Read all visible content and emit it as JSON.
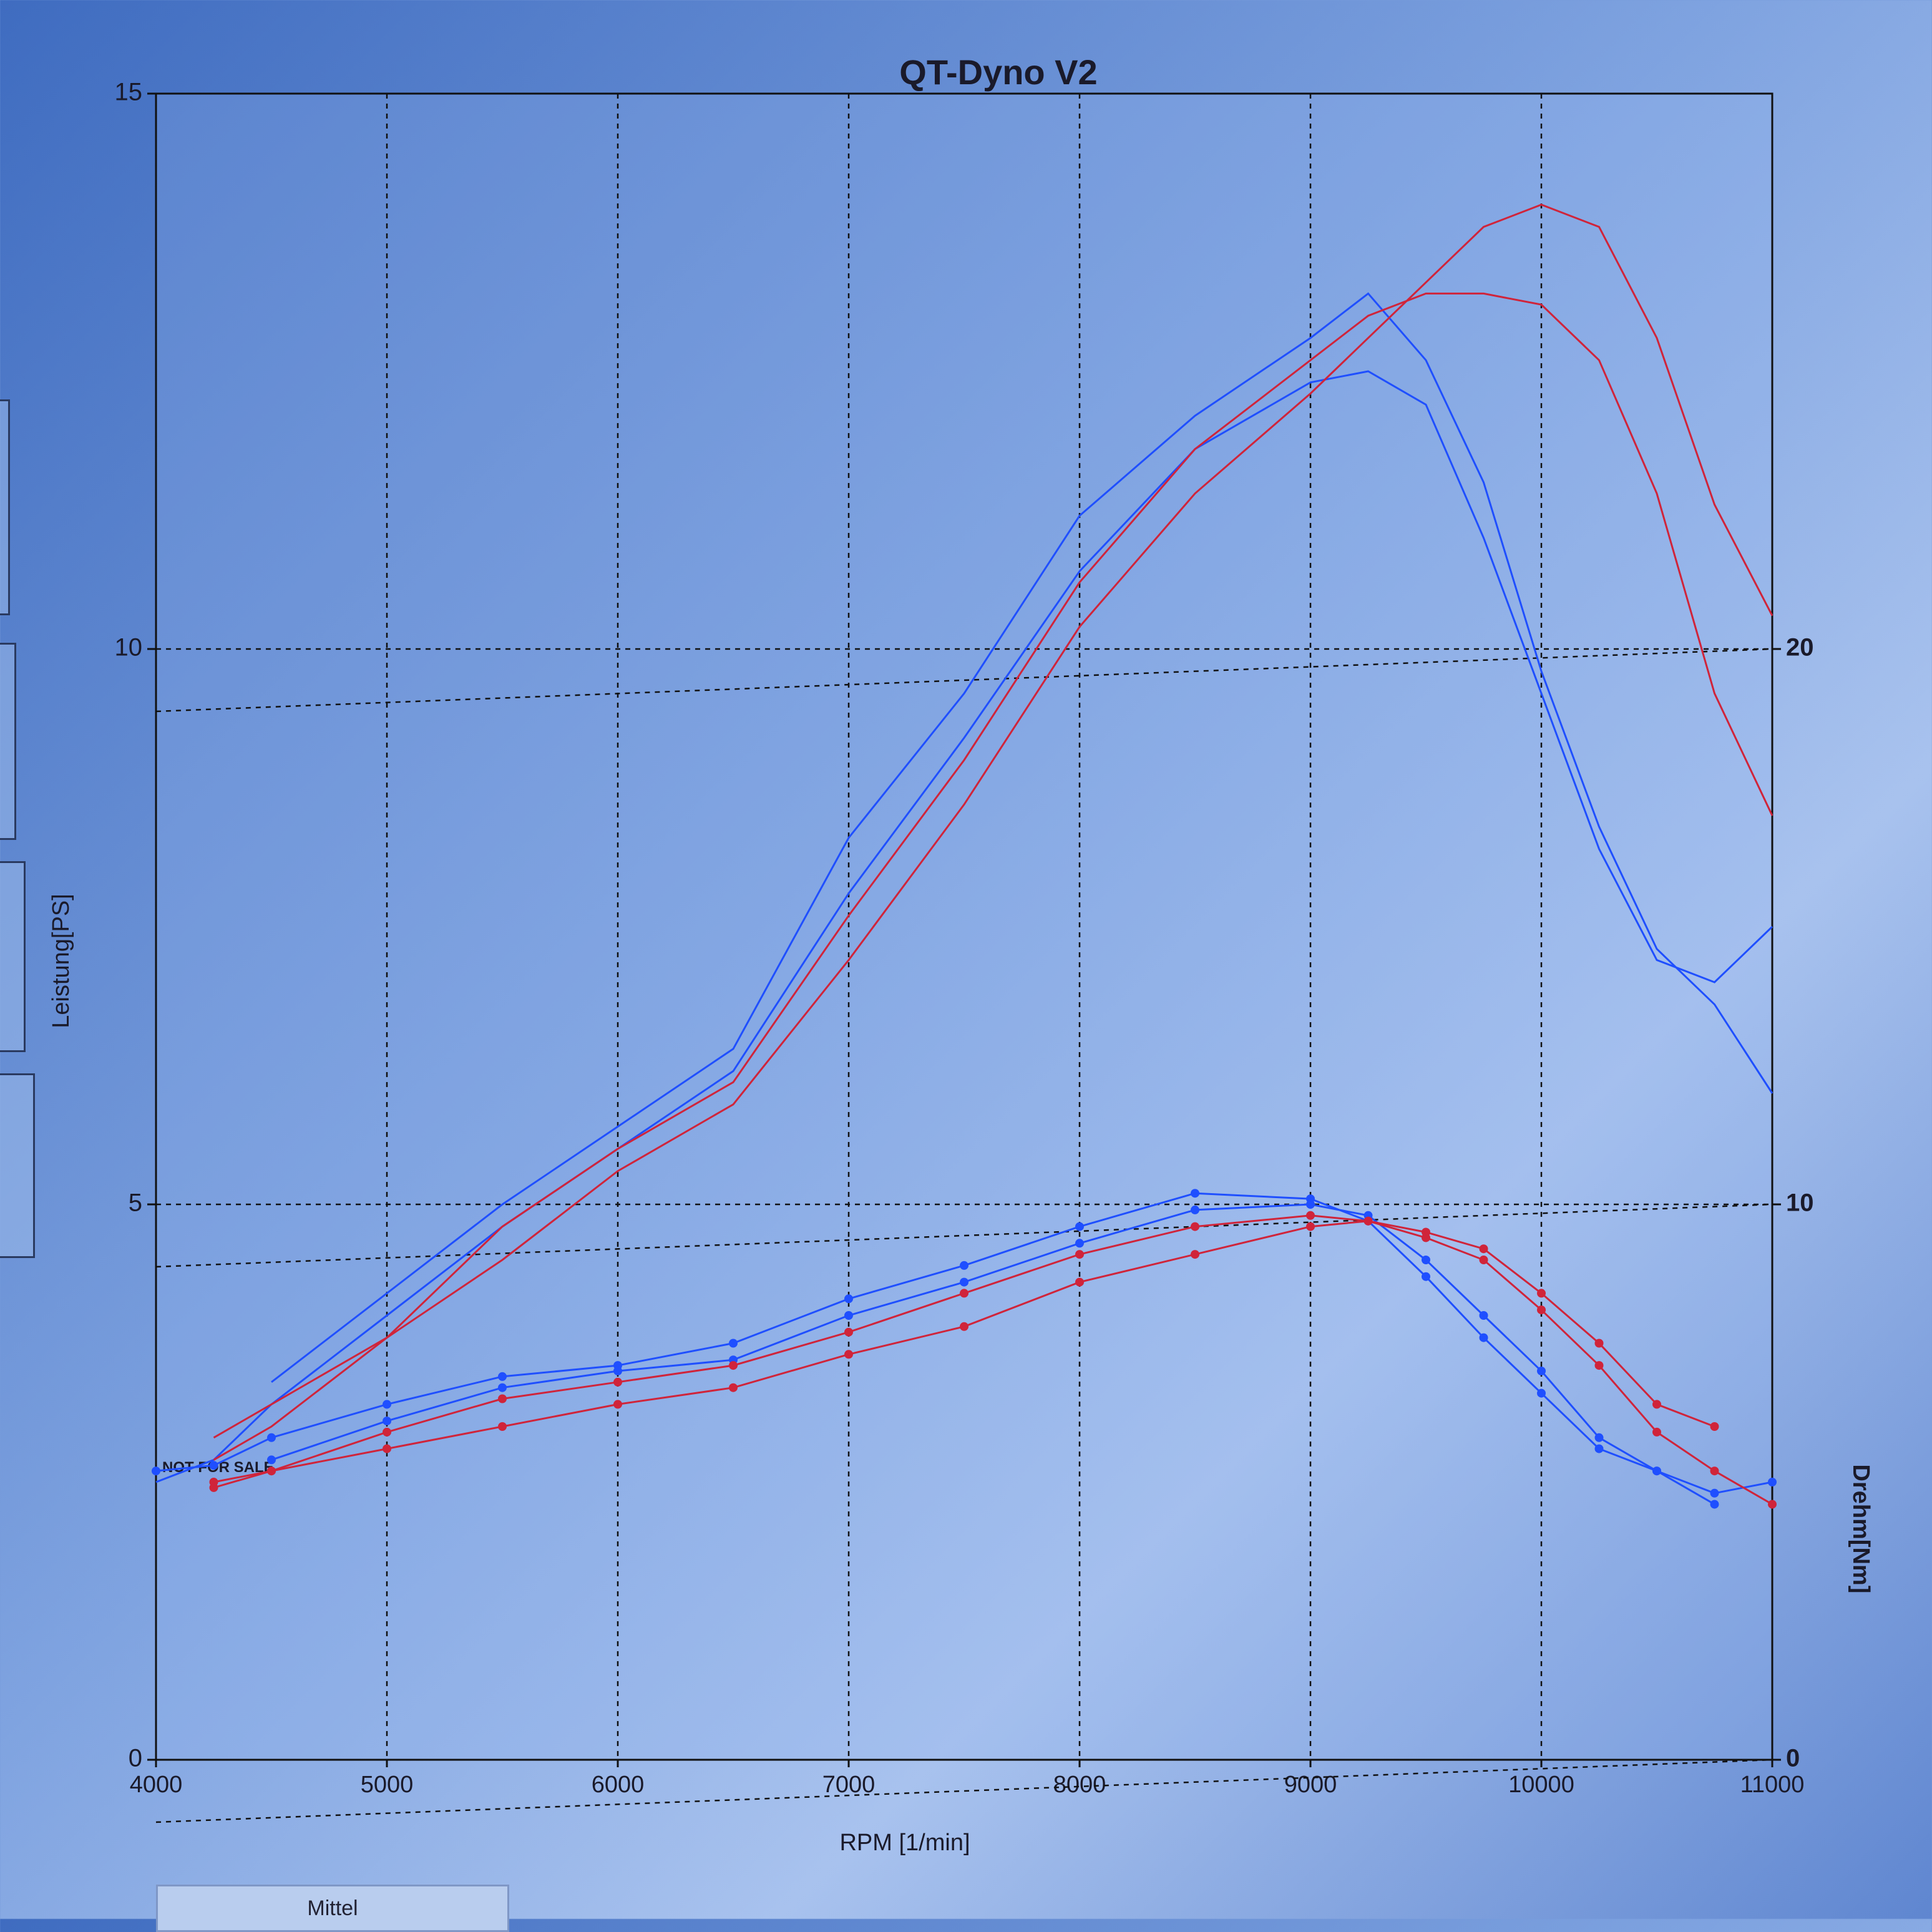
{
  "chart_data": {
    "type": "line",
    "title": "QT-Dyno V2",
    "x_label": "RPM [1/min]",
    "y_label": "Leistung[PS]",
    "y2_label": "Drehm[Nm]",
    "annotation": "NOT FOR SALE",
    "x": [
      4000,
      4250,
      4500,
      5000,
      5500,
      6000,
      6500,
      7000,
      7500,
      8000,
      8500,
      9000,
      9250,
      9500,
      9750,
      10000,
      10250,
      10500,
      10750,
      11000
    ],
    "xlim": [
      4000,
      11000
    ],
    "xticks": [
      4000,
      5000,
      6000,
      7000,
      8000,
      9000,
      10000,
      11000
    ],
    "ylim": [
      0,
      15
    ],
    "yticks": [
      0,
      5,
      10,
      15
    ],
    "y2lim": [
      0,
      30
    ],
    "y2ticks": [
      0,
      10,
      20
    ],
    "grid": true,
    "series": [
      {
        "color": "#1f4fff",
        "values": [
          null,
          null,
          3.4,
          4.2,
          5.0,
          5.7,
          6.4,
          8.3,
          9.6,
          11.2,
          12.1,
          12.8,
          13.2,
          12.6,
          11.5,
          9.8,
          8.4,
          7.3,
          6.8,
          6.0
        ]
      },
      {
        "color": "#1f4fff",
        "values": [
          2.5,
          2.7,
          3.2,
          4.0,
          4.8,
          5.5,
          6.2,
          7.8,
          9.2,
          10.7,
          11.8,
          12.4,
          12.5,
          12.2,
          11.0,
          9.6,
          8.2,
          7.2,
          7.0,
          7.5
        ]
      },
      {
        "color": "#d0243a",
        "values": [
          null,
          2.9,
          3.2,
          3.8,
          4.5,
          5.3,
          5.9,
          7.2,
          8.6,
          10.2,
          11.4,
          12.3,
          12.8,
          13.3,
          13.8,
          14.0,
          13.8,
          12.8,
          11.3,
          10.3
        ]
      },
      {
        "color": "#d0243a",
        "values": [
          null,
          2.7,
          3.0,
          3.8,
          4.8,
          5.5,
          6.1,
          7.6,
          9.0,
          10.6,
          11.8,
          12.6,
          13.0,
          13.2,
          13.2,
          13.1,
          12.6,
          11.4,
          9.6,
          8.5
        ]
      },
      {
        "color": "#1f4fff",
        "axis": "y2",
        "markers": true,
        "values": [
          5.2,
          5.3,
          5.8,
          6.4,
          6.9,
          7.1,
          7.5,
          8.3,
          8.9,
          9.6,
          10.2,
          10.1,
          9.7,
          8.7,
          7.6,
          6.6,
          5.6,
          5.2,
          4.8,
          5.0
        ]
      },
      {
        "color": "#1f4fff",
        "axis": "y2",
        "markers": true,
        "values": [
          null,
          null,
          5.4,
          6.1,
          6.7,
          7.0,
          7.2,
          8.0,
          8.6,
          9.3,
          9.9,
          10.0,
          9.8,
          9.0,
          8.0,
          7.0,
          5.8,
          5.2,
          4.6,
          null
        ]
      },
      {
        "color": "#d0243a",
        "axis": "y2",
        "markers": true,
        "values": [
          null,
          4.9,
          5.2,
          5.9,
          6.5,
          6.8,
          7.1,
          7.7,
          8.4,
          9.1,
          9.6,
          9.8,
          9.7,
          9.5,
          9.2,
          8.4,
          7.5,
          6.4,
          6.0,
          null
        ]
      },
      {
        "color": "#d0243a",
        "axis": "y2",
        "markers": true,
        "values": [
          null,
          5.0,
          5.2,
          5.6,
          6.0,
          6.4,
          6.7,
          7.3,
          7.8,
          8.6,
          9.1,
          9.6,
          9.7,
          9.4,
          9.0,
          8.1,
          7.1,
          5.9,
          5.2,
          4.6
        ]
      }
    ]
  },
  "buttons": {
    "mittel": "Mittel"
  }
}
